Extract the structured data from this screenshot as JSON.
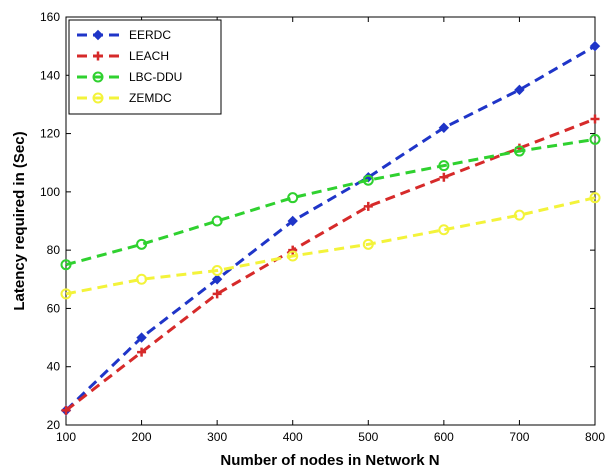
{
  "chart_data": {
    "type": "line",
    "xlabel": "Number of nodes in Network N",
    "ylabel": "Latency required  in  (Sec)",
    "xlim": [
      100,
      800
    ],
    "ylim": [
      20,
      160
    ],
    "x_ticks": [
      100,
      200,
      300,
      400,
      500,
      600,
      700,
      800
    ],
    "y_ticks": [
      20,
      40,
      60,
      80,
      100,
      120,
      140,
      160
    ],
    "grid": false,
    "legend_position": "top-left",
    "x": [
      100,
      200,
      300,
      400,
      500,
      600,
      700,
      800
    ],
    "series": [
      {
        "name": "EERDC",
        "color": "#1f35c8",
        "marker": "diamond",
        "values": [
          25,
          50,
          70,
          90,
          105,
          122,
          135,
          150
        ]
      },
      {
        "name": "LEACH",
        "color": "#d62a2a",
        "marker": "plus",
        "values": [
          25,
          45,
          65,
          80,
          95,
          105,
          115,
          125
        ]
      },
      {
        "name": "LBC-DDU",
        "color": "#2fd12f",
        "marker": "circle",
        "values": [
          75,
          82,
          90,
          98,
          104,
          109,
          114,
          118
        ]
      },
      {
        "name": "ZEMDC",
        "color": "#f3f33a",
        "marker": "circle",
        "values": [
          65,
          70,
          73,
          78,
          82,
          87,
          92,
          98
        ]
      }
    ]
  }
}
